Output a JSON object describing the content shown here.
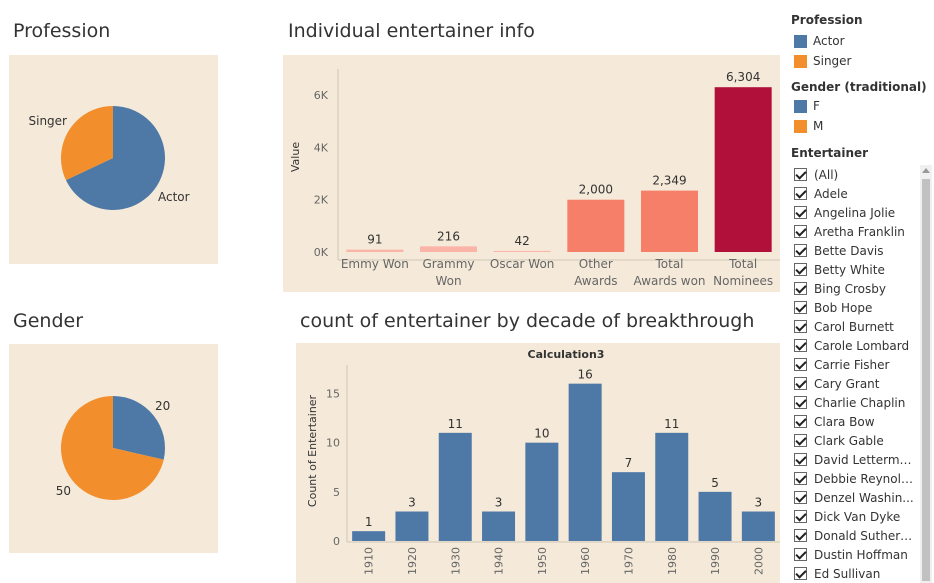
{
  "titles": {
    "profession": "Profession",
    "individual": "Individual entertainer info",
    "gender": "Gender",
    "decade": "count of entertainer by decade  of breakthrough"
  },
  "colors": {
    "panel_bg": "#f5ead9",
    "blue": "#4e79a7",
    "orange": "#f28e2b",
    "light_salmon": "#fbb4a8",
    "salmon": "#f67f6a",
    "crimson": "#b0103a"
  },
  "chart_data": [
    {
      "id": "profession",
      "type": "pie",
      "labels": [
        "Actor",
        "Singer"
      ],
      "values": [
        68,
        32
      ],
      "colors": [
        "#4e79a7",
        "#f28e2b"
      ],
      "slice_labels": [
        "Actor",
        "Singer"
      ]
    },
    {
      "id": "awards",
      "type": "bar",
      "categories": [
        "Emmy Won",
        "Grammy Won",
        "Oscar Won",
        "Other Awards",
        "Total Awards won",
        "Total Nominees"
      ],
      "category_lines": [
        [
          "Emmy Won"
        ],
        [
          "Grammy",
          "Won"
        ],
        [
          "Oscar Won"
        ],
        [
          "Other",
          "Awards"
        ],
        [
          "Total",
          "Awards won"
        ],
        [
          "Total",
          "Nominees"
        ]
      ],
      "values": [
        91,
        216,
        42,
        2000,
        2349,
        6304
      ],
      "data_labels": [
        "91",
        "216",
        "42",
        "2,000",
        "2,349",
        "6,304"
      ],
      "bar_colors": [
        "#fbb4a8",
        "#fbb4a8",
        "#fbb4a8",
        "#f67f6a",
        "#f67f6a",
        "#b0103a"
      ],
      "ylabel": "Value",
      "yticks": [
        0,
        2000,
        4000,
        6000
      ],
      "ytick_labels": [
        "0K",
        "2K",
        "4K",
        "6K"
      ],
      "ylim": [
        0,
        7000
      ],
      "grid": false
    },
    {
      "id": "gender",
      "type": "pie",
      "labels": [
        "F",
        "M"
      ],
      "values": [
        20,
        50
      ],
      "colors": [
        "#4e79a7",
        "#f28e2b"
      ],
      "slice_labels": [
        "20",
        "50"
      ]
    },
    {
      "id": "decade",
      "type": "bar",
      "title": "Calculation3",
      "categories": [
        "1910",
        "1920",
        "1930",
        "1940",
        "1950",
        "1960",
        "1970",
        "1980",
        "1990",
        "2000"
      ],
      "values": [
        1,
        3,
        11,
        3,
        10,
        16,
        7,
        11,
        5,
        3
      ],
      "ylabel": "Count of Entertainer",
      "yticks": [
        0,
        5,
        10,
        15
      ],
      "ylim": [
        0,
        18
      ],
      "color": "#4e79a7",
      "grid": false
    }
  ],
  "sidebar": {
    "profession_heading": "Profession",
    "profession_items": [
      {
        "label": "Actor",
        "color": "#4e79a7"
      },
      {
        "label": "Singer",
        "color": "#f28e2b"
      }
    ],
    "gender_heading": "Gender (traditional)",
    "gender_items": [
      {
        "label": "F",
        "color": "#4e79a7"
      },
      {
        "label": "M",
        "color": "#f28e2b"
      }
    ],
    "entertainer_heading": "Entertainer",
    "entertainers": [
      "(All)",
      "Adele",
      "Angelina Jolie",
      "Aretha Franklin",
      "Bette Davis",
      "Betty White",
      "Bing Crosby",
      "Bob Hope",
      "Carol Burnett",
      "Carole Lombard",
      "Carrie Fisher",
      "Cary Grant",
      "Charlie Chaplin",
      "Clara Bow",
      "Clark Gable",
      "David Letterman",
      "Debbie Reynolds",
      "Denzel Washin...",
      "Dick Van Dyke",
      "Donald Sutherl...",
      "Dustin Hoffman",
      "Ed Sullivan"
    ]
  }
}
